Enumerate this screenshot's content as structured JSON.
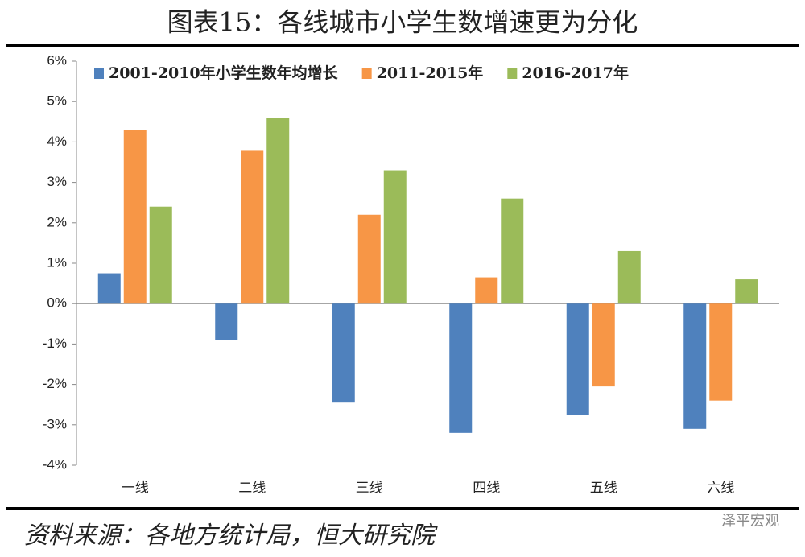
{
  "chart_data": {
    "type": "bar",
    "title": "图表15：各线城市小学生数增速更为分化",
    "source": "资料来源：各地方统计局，恒大研究院",
    "watermark": "泽平宏观",
    "categories": [
      "一线",
      "二线",
      "三线",
      "四线",
      "五线",
      "六线"
    ],
    "series": [
      {
        "name": "2001-2010年小学生数年均增长",
        "color": "#4f81bd",
        "values": [
          0.75,
          -0.9,
          -2.45,
          -3.2,
          -2.75,
          -3.1
        ]
      },
      {
        "name": "2011-2015年",
        "color": "#f79646",
        "values": [
          4.3,
          3.8,
          2.2,
          0.65,
          -2.05,
          -2.4
        ]
      },
      {
        "name": "2016-2017年",
        "color": "#9bbb59",
        "values": [
          2.4,
          4.6,
          3.3,
          2.6,
          1.3,
          0.6
        ]
      }
    ],
    "ylim": [
      -4,
      6
    ],
    "yticks": [
      {
        "value": -4,
        "label": "-4%"
      },
      {
        "value": -3,
        "label": "-3%"
      },
      {
        "value": -2,
        "label": "-2%"
      },
      {
        "value": -1,
        "label": "-1%"
      },
      {
        "value": 0,
        "label": "0%"
      },
      {
        "value": 1,
        "label": "1%"
      },
      {
        "value": 2,
        "label": "2%"
      },
      {
        "value": 3,
        "label": "3%"
      },
      {
        "value": 4,
        "label": "4%"
      },
      {
        "value": 5,
        "label": "5%"
      },
      {
        "value": 6,
        "label": "6%"
      }
    ],
    "legend": "top-left"
  }
}
